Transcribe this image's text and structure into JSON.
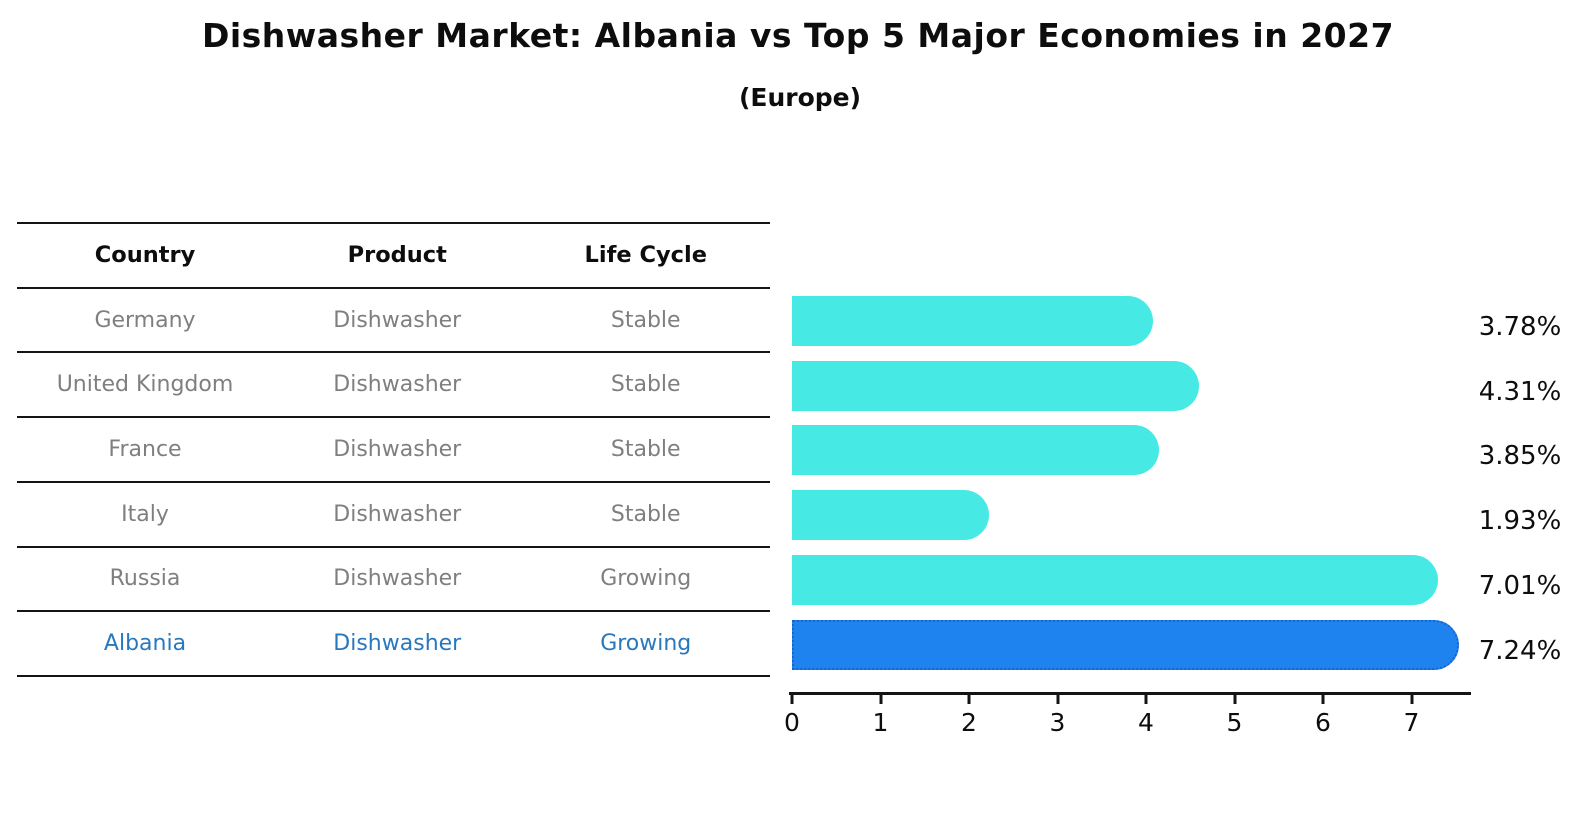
{
  "title": "Dishwasher Market: Albania vs Top 5 Major Economies in 2027",
  "subtitle": "(Europe)",
  "table": {
    "headers": [
      "Country",
      "Product",
      "Life Cycle"
    ],
    "rows": [
      {
        "country": "Germany",
        "product": "Dishwasher",
        "life_cycle": "Stable",
        "share": "3.78%",
        "highlight": false
      },
      {
        "country": "United Kingdom",
        "product": "Dishwasher",
        "life_cycle": "Stable",
        "share": "4.31%",
        "highlight": false
      },
      {
        "country": "France",
        "product": "Dishwasher",
        "life_cycle": "Stable",
        "share": "3.85%",
        "highlight": false
      },
      {
        "country": "Italy",
        "product": "Dishwasher",
        "life_cycle": "Stable",
        "share": "1.93%",
        "highlight": false
      },
      {
        "country": "Russia",
        "product": "Dishwasher",
        "life_cycle": "Growing",
        "share": "7.01%",
        "highlight": false
      },
      {
        "country": "Albania",
        "product": "Dishwasher",
        "life_cycle": "Growing",
        "share": "7.24%",
        "highlight": true
      }
    ]
  },
  "chart_data": {
    "type": "bar",
    "orientation": "horizontal",
    "title": "Dishwasher Market: Albania vs Top 5 Major Economies in 2027",
    "subtitle": "(Europe)",
    "categories": [
      "Germany",
      "United Kingdom",
      "France",
      "Italy",
      "Russia",
      "Albania"
    ],
    "values": [
      3.78,
      4.31,
      3.85,
      1.93,
      7.01,
      7.24
    ],
    "value_labels": [
      "3.78%",
      "4.31%",
      "3.85%",
      "1.93%",
      "7.01%",
      "7.24%"
    ],
    "unit": "percent",
    "xlabel": "",
    "ylabel": "",
    "xlim": [
      0,
      7.66
    ],
    "x_ticks": [
      "0",
      "1",
      "2",
      "3",
      "4",
      "5",
      "6",
      "7"
    ],
    "grid": false,
    "legend": false,
    "bar_color": "#46e9e4",
    "highlight_color": "#1e83ef",
    "highlight_border_color": "#1565d0",
    "highlight_index": 5,
    "highlight_text_color": "#2878be"
  }
}
